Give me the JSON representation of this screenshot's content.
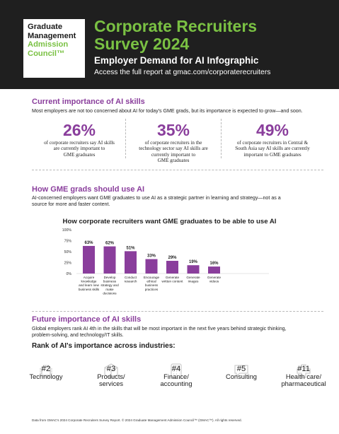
{
  "header": {
    "logo_lines": [
      "Graduate",
      "Management",
      "Admission",
      "Council™"
    ],
    "title_line1": "Corporate Recruiters",
    "title_line2": "Survey 2024",
    "subtitle": "Employer Demand for AI Infographic",
    "link_text": "Access the full report at gmac.com/corporaterecruiters"
  },
  "current": {
    "title": "Current importance of AI skills",
    "text": "Most employers are not too concerned about AI for today's GME grads, but its importance is expected to grow—and soon.",
    "stats": [
      {
        "pct": "26%",
        "lines": [
          "of corporate recruiters say AI skills",
          "are currently important to",
          "GME graduates"
        ]
      },
      {
        "pct": "35%",
        "lines": [
          "of corporate recruiters in the",
          "technology sector say AI skills are",
          "currently important to",
          "GME graduates"
        ]
      },
      {
        "pct": "49%",
        "lines": [
          "of corporate recruiters in Central &",
          "South Asia say AI skills are currently",
          "important to GME graduates"
        ]
      }
    ]
  },
  "how": {
    "title": "How GME grads should use AI",
    "text_lines": [
      "AI-concerned employers want GME graduates to use AI as a strategic partner in learning and strategy—not as a",
      "source for more and faster content."
    ]
  },
  "chart_data": {
    "type": "bar",
    "title": "How corporate recruiters want GME graduates to be able to use AI",
    "categories": [
      [
        "Acquire",
        "knowledge",
        "and learn new",
        "business skills"
      ],
      [
        "Develop",
        "business",
        "strategy and",
        "make",
        "decisions"
      ],
      [
        "Conduct",
        "research"
      ],
      [
        "Encourage",
        "ethical",
        "business",
        "practices"
      ],
      [
        "Generate",
        "written content"
      ],
      [
        "Generate",
        "images"
      ],
      [
        "Generate",
        "videos"
      ]
    ],
    "values": [
      63,
      62,
      51,
      33,
      29,
      19,
      16
    ],
    "value_labels": [
      "63%",
      "62%",
      "51%",
      "33%",
      "29%",
      "19%",
      "16%"
    ],
    "yticks": [
      "100%",
      "75%",
      "50%",
      "25%",
      "0%"
    ],
    "ylim": [
      0,
      100
    ],
    "color": "#8a3e9c"
  },
  "future": {
    "title": "Future importance of AI skills",
    "text_lines": [
      "Global employers rank AI 4th in the skills that will be most important in the next five years behind strategic thinking,",
      "problem-solving, and technology/IT skills."
    ],
    "rank_title": "Rank of AI's importance across industries:",
    "ranks": [
      {
        "num": "#2",
        "lines": [
          "Technology"
        ]
      },
      {
        "num": "#3",
        "lines": [
          "Products/",
          "services"
        ]
      },
      {
        "num": "#4",
        "lines": [
          "Finance/",
          "accounting"
        ]
      },
      {
        "num": "#5",
        "lines": [
          "Consulting"
        ]
      },
      {
        "num": "#11",
        "lines": [
          "Health care/",
          "pharmaceutical"
        ]
      }
    ]
  },
  "footer": "Data from GMAC's 2024 Corporate Recruiters Survey Report. © 2024 Graduate Management Admission Council™ (GMAC™). All rights reserved.",
  "colors": {
    "accent_green": "#7ac143",
    "accent_purple": "#8a3e9c",
    "header_bg": "#1f1f1f"
  }
}
